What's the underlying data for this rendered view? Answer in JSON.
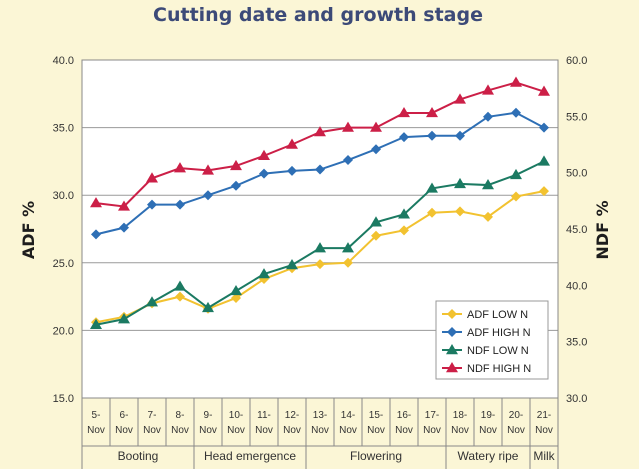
{
  "chart_data": {
    "type": "line",
    "title": "Cutting date and growth stage",
    "ylabel": "ADF %",
    "y2label": "NDF %",
    "ylim": [
      15,
      40
    ],
    "y2lim": [
      30,
      60
    ],
    "yticks": [
      "15.0",
      "20.0",
      "25.0",
      "30.0",
      "35.0",
      "40.0"
    ],
    "y2ticks": [
      "30.0",
      "35.0",
      "40.0",
      "45.0",
      "50.0",
      "55.0",
      "60.0"
    ],
    "categories": [
      [
        "5-",
        "Nov"
      ],
      [
        "6-",
        "Nov"
      ],
      [
        "7-",
        "Nov"
      ],
      [
        "8-",
        "Nov"
      ],
      [
        "9-",
        "Nov"
      ],
      [
        "10-",
        "Nov"
      ],
      [
        "11-",
        "Nov"
      ],
      [
        "12-",
        "Nov"
      ],
      [
        "13-",
        "Nov"
      ],
      [
        "14-",
        "Nov"
      ],
      [
        "15-",
        "Nov"
      ],
      [
        "16-",
        "Nov"
      ],
      [
        "17-",
        "Nov"
      ],
      [
        "18-",
        "Nov"
      ],
      [
        "19-",
        "Nov"
      ],
      [
        "20-",
        "Nov"
      ],
      [
        "21-",
        "Nov"
      ]
    ],
    "stages": [
      {
        "label": "Booting",
        "start": 0,
        "end": 3
      },
      {
        "label": "Head emergence",
        "start": 4,
        "end": 7
      },
      {
        "label": "Flowering",
        "start": 8,
        "end": 12
      },
      {
        "label": "Watery ripe",
        "start": 13,
        "end": 15
      },
      {
        "label": "Milk",
        "start": 16,
        "end": 16
      }
    ],
    "series": [
      {
        "name": "ADF LOW N",
        "axis": "left",
        "marker": "diamond",
        "color": "#f2c230",
        "values": [
          20.6,
          21.0,
          22.0,
          22.5,
          21.6,
          22.4,
          23.8,
          24.6,
          24.9,
          25.0,
          27.0,
          27.4,
          28.7,
          28.8,
          28.4,
          29.9,
          30.3
        ]
      },
      {
        "name": "ADF HIGH N",
        "axis": "left",
        "marker": "diamond",
        "color": "#2e6fb5",
        "values": [
          27.1,
          27.6,
          29.3,
          29.3,
          30.0,
          30.7,
          31.6,
          31.8,
          31.9,
          32.6,
          33.4,
          34.3,
          34.4,
          34.4,
          35.8,
          36.1,
          35.0
        ]
      },
      {
        "name": "NDF LOW N",
        "axis": "right",
        "marker": "triangle",
        "color": "#1b7a62",
        "values": [
          36.5,
          37.0,
          38.5,
          39.9,
          38.0,
          39.5,
          41.0,
          41.8,
          43.3,
          43.3,
          45.6,
          46.3,
          48.6,
          49.0,
          48.9,
          49.8,
          51.0
        ]
      },
      {
        "name": "NDF HIGH N",
        "axis": "right",
        "marker": "triangle",
        "color": "#cc1f47",
        "values": [
          47.3,
          47.0,
          49.5,
          50.4,
          50.2,
          50.6,
          51.5,
          52.5,
          53.6,
          54.0,
          54.0,
          55.3,
          55.3,
          56.5,
          57.3,
          58.0,
          57.2
        ]
      }
    ],
    "legend_position": "bottom-right",
    "grid": true
  }
}
